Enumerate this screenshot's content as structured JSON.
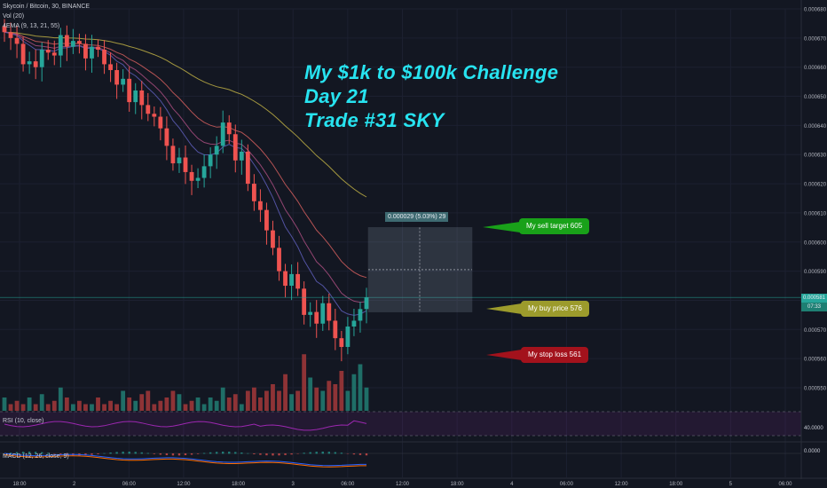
{
  "header": {
    "symbol_line": "Skycoin / Bitcoin, 30, BINANCE",
    "vol_label": "Vol (20)",
    "ema_label": "4EMA (9, 13, 21, 55)"
  },
  "annotation": {
    "line1": "My $1k to $100k Challenge",
    "line2": "Day 21",
    "line3": "Trade #31  SKY"
  },
  "flags": {
    "sell_target": "My sell target 605",
    "buy_price": "My buy price 576",
    "stop_loss": "My stop loss 561"
  },
  "measure_label": "0.000029 (5.03%) 29",
  "price_tag": {
    "value": "0.000581",
    "timer": "07:33"
  },
  "rsi": {
    "label": "RSI (10, close)",
    "level_label": "40.0000"
  },
  "macd": {
    "label": "MACD (12, 26, close, 9)",
    "zero_label": "0.0000"
  },
  "colors": {
    "background": "#131722",
    "up_candle": "#26a69a",
    "down_candle": "#ef5350",
    "ema_slow": "#b5a642",
    "ema_fast": "#c85a5a",
    "annotation_text": "#27e3f0",
    "sell_flag": "#19a119",
    "buy_flag": "#9c9b2c",
    "stop_flag": "#a3121c",
    "rsi_line": "#9c27b0"
  },
  "chart_data": {
    "type": "candlestick",
    "title": "Skycoin / Bitcoin, 30, BINANCE",
    "y_axis": {
      "min": 0.00055,
      "max": 0.00068,
      "ticks": [
        "0.000680",
        "0.000670",
        "0.000660",
        "0.000650",
        "0.000640",
        "0.000630",
        "0.000620",
        "0.000610",
        "0.000600",
        "0.000590",
        "0.000580",
        "0.000570",
        "0.000560",
        "0.000550"
      ]
    },
    "x_axis": {
      "ticks": [
        "18:00",
        "2",
        "06:00",
        "12:00",
        "18:00",
        "3",
        "06:00",
        "12:00",
        "18:00",
        "4",
        "06:00",
        "12:00",
        "18:00",
        "5",
        "06:00"
      ]
    },
    "candles_close": [
      0.000672,
      0.00067,
      0.000668,
      0.000661,
      0.000662,
      0.00066,
      0.000666,
      0.000665,
      0.000664,
      0.000671,
      0.000667,
      0.000669,
      0.000668,
      0.000663,
      0.000667,
      0.000666,
      0.000661,
      0.000659,
      0.000654,
      0.000656,
      0.000648,
      0.000652,
      0.000647,
      0.000644,
      0.000643,
      0.000639,
      0.000633,
      0.000627,
      0.000629,
      0.000624,
      0.000621,
      0.000622,
      0.000626,
      0.00063,
      0.000633,
      0.000641,
      0.000637,
      0.000628,
      0.000631,
      0.00062,
      0.000614,
      0.000611,
      0.000604,
      0.000598,
      0.00059,
      0.000585,
      0.000589,
      0.000584,
      0.000575,
      0.000576,
      0.000572,
      0.000579,
      0.000573,
      0.000567,
      0.000564,
      0.000571,
      0.000573,
      0.000577,
      0.000581
    ],
    "levels": {
      "sell_target": 0.000605,
      "buy_price": 0.000576,
      "stop_loss": 0.000561,
      "current": 0.000581
    },
    "volume_relative": [
      0.2,
      0.1,
      0.15,
      0.1,
      0.2,
      0.1,
      0.25,
      0.1,
      0.15,
      0.35,
      0.2,
      0.1,
      0.15,
      0.1,
      0.1,
      0.2,
      0.1,
      0.15,
      0.1,
      0.3,
      0.2,
      0.15,
      0.25,
      0.3,
      0.1,
      0.15,
      0.2,
      0.3,
      0.25,
      0.1,
      0.15,
      0.2,
      0.1,
      0.2,
      0.15,
      0.35,
      0.2,
      0.25,
      0.1,
      0.3,
      0.35,
      0.2,
      0.3,
      0.4,
      0.3,
      0.55,
      0.25,
      0.3,
      0.85,
      0.5,
      0.35,
      0.3,
      0.45,
      0.4,
      0.6,
      0.3,
      0.55,
      0.7,
      0.35
    ]
  }
}
